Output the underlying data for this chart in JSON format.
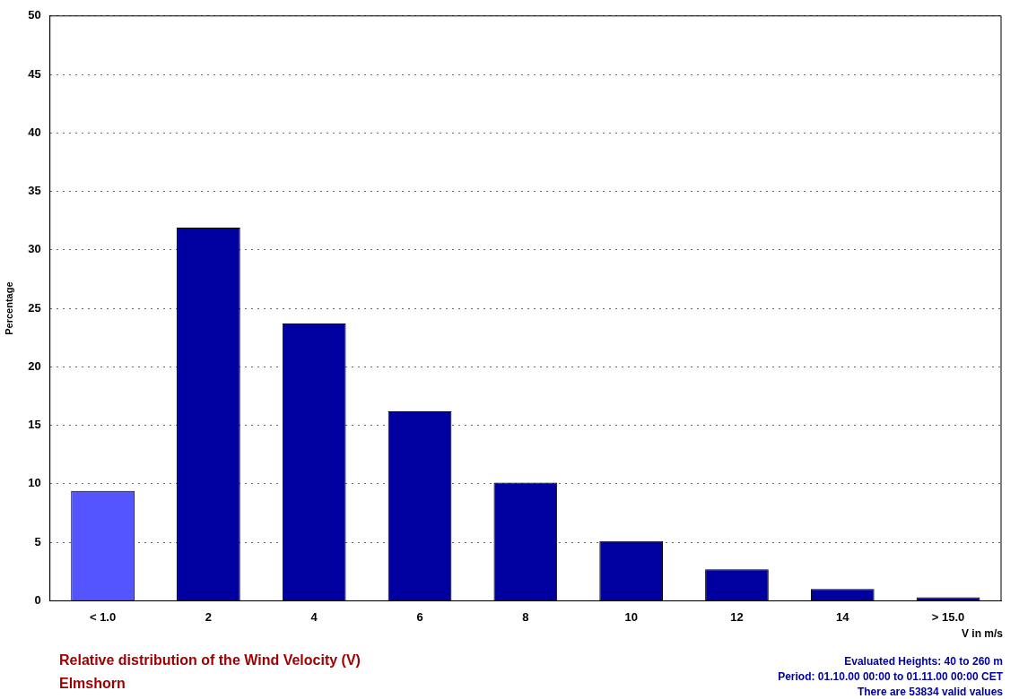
{
  "chart_data": {
    "type": "bar",
    "title": "Relative distribution of the Wind Velocity (V)",
    "subtitle": "Elmshorn",
    "xlabel": "V in m/s",
    "ylabel": "Percentage",
    "categories": [
      "< 1.0",
      "2",
      "4",
      "6",
      "8",
      "10",
      "12",
      "14",
      "> 15.0"
    ],
    "values": [
      9.4,
      31.9,
      23.7,
      16.2,
      10.1,
      5.1,
      2.7,
      1.0,
      0.3
    ],
    "colors": [
      "#5555ff",
      "#0000a0",
      "#0000a0",
      "#0000a0",
      "#0000a0",
      "#0000a0",
      "#0000a0",
      "#0000a0",
      "#0000a0"
    ],
    "ylim": [
      0,
      50
    ],
    "yticks": [
      0,
      5,
      10,
      15,
      20,
      25,
      30,
      35,
      40,
      45,
      50
    ],
    "grid": "y",
    "legend": false,
    "annotations": [
      "Evaluated Heights: 40 to 260 m",
      "Period: 01.10.00 00:00 to 01.11.00 00:00 CET",
      "There are 53834 valid values"
    ]
  }
}
